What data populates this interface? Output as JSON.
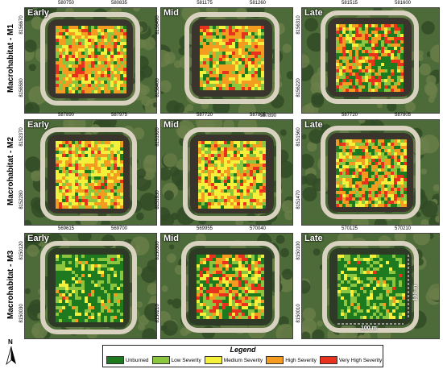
{
  "rows": [
    {
      "label": "Macrohabitat - M1",
      "panels": [
        {
          "title": "Early",
          "top_coords": [
            "580750",
            "580835"
          ],
          "side_coords": [
            "8156670",
            "8156580"
          ]
        },
        {
          "title": "Mid",
          "top_coords": [
            "581175",
            "581260"
          ],
          "side_coords": [
            "8156490",
            "8156400"
          ]
        },
        {
          "title": "Late",
          "top_coords": [
            "581515",
            "581600"
          ],
          "side_coords": [
            "8156310",
            "8156220"
          ]
        }
      ]
    },
    {
      "label": "Macrohabitat - M2",
      "panels": [
        {
          "title": "Early",
          "top_coords": [
            "587890",
            "587975"
          ],
          "side_coords": [
            "8152370",
            "8152280"
          ]
        },
        {
          "title": "Mid",
          "top_coords": [
            "587720",
            "587805"
          ],
          "side_coords": [
            "8151920",
            "8151830"
          ]
        },
        {
          "title": "Late",
          "top_coords": [
            "587720",
            "587805"
          ],
          "side_coords": [
            "8151560",
            "8151470"
          ]
        }
      ]
    },
    {
      "label": "Macrohabitat - M3",
      "panels": [
        {
          "title": "Early",
          "top_coords": [
            "569615",
            "569700"
          ],
          "side_coords": [
            "8150120",
            "8150030"
          ]
        },
        {
          "title": "Mid",
          "top_coords": [
            "569955",
            "570040"
          ],
          "side_coords": [
            "8150300",
            "8150210"
          ]
        },
        {
          "title": "Late",
          "top_coords": [
            "570125",
            "570210"
          ],
          "side_coords": [
            "8150100",
            "8150010"
          ]
        }
      ]
    }
  ],
  "extra_coord": "587890",
  "scale": {
    "horizontal": "100 m",
    "vertical": "100 m"
  },
  "north_label": "N",
  "legend": {
    "title": "Legend",
    "items": [
      {
        "label": "Unburned",
        "color": "#1e7a1e"
      },
      {
        "label": "Low Severity",
        "color": "#8cc63f"
      },
      {
        "label": "Medium Severity",
        "color": "#f5f03a"
      },
      {
        "label": "High Severity",
        "color": "#f39c1f"
      },
      {
        "label": "Very High Severity",
        "color": "#e8321e"
      }
    ]
  },
  "colors": {
    "vegetation_dark": "#2f4a24",
    "vegetation_mid": "#4d6b38",
    "bare_soil": "#d9d2c0",
    "burned_ground": "#3a352c"
  }
}
